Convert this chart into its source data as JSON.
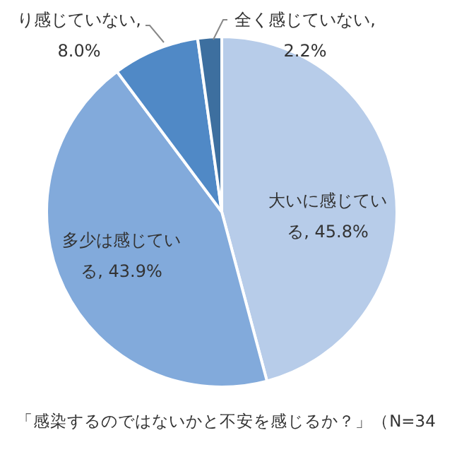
{
  "chart_data": {
    "type": "pie",
    "categories": [
      "大いに感じている",
      "多少は感じている",
      "り感じていない",
      "全く感じていない"
    ],
    "value_labels": [
      ", 45.8%",
      ", 43.9%",
      ", 8.0%",
      ", 2.2%"
    ],
    "values": [
      45.8,
      43.9,
      8.0,
      2.2
    ],
    "colors": [
      "#b7cce9",
      "#82aadb",
      "#5089c6",
      "#3d6f9f"
    ],
    "data_labels": true,
    "annotations": [
      "「感染するのではないかと不安を感じるか？」（N=34"
    ]
  }
}
